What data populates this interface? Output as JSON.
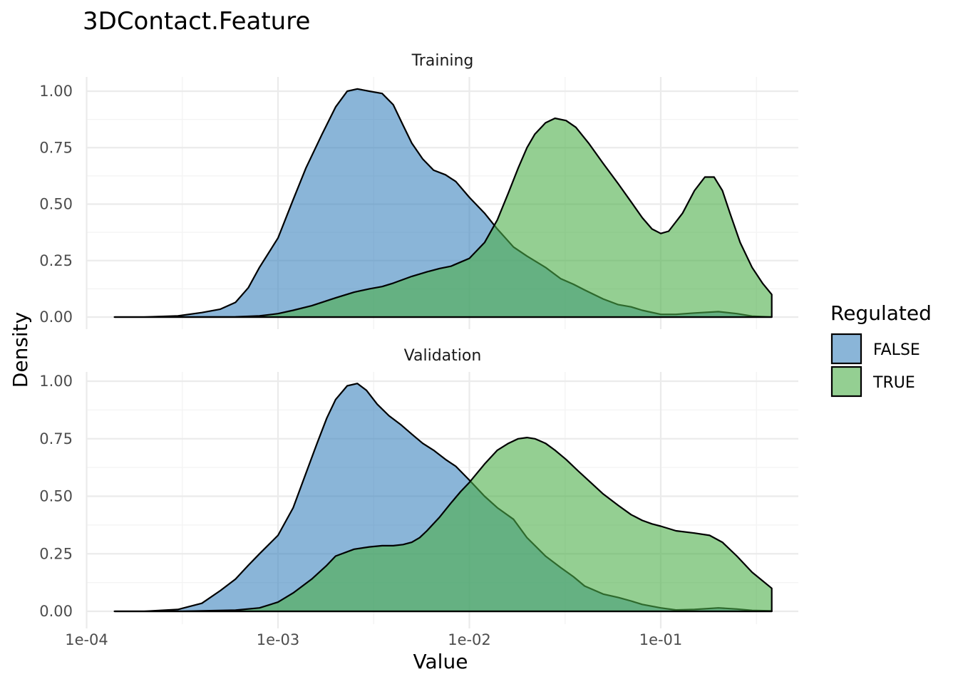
{
  "chart_data": {
    "type": "area",
    "title": "3DContact.Feature",
    "xlabel": "Value",
    "ylabel": "Density",
    "x_scale": "log10",
    "xlim": [
      0.0001,
      0.4
    ],
    "x_ticks": [
      {
        "value": 0.0001,
        "label": "1e-04"
      },
      {
        "value": 0.001,
        "label": "1e-03"
      },
      {
        "value": 0.01,
        "label": "1e-02"
      },
      {
        "value": 0.1,
        "label": "1e-01"
      }
    ],
    "ylim": [
      0,
      1.05
    ],
    "y_ticks": [
      {
        "value": 0,
        "label": "0.00"
      },
      {
        "value": 0.25,
        "label": "0.25"
      },
      {
        "value": 0.5,
        "label": "0.50"
      },
      {
        "value": 0.75,
        "label": "0.75"
      },
      {
        "value": 1,
        "label": "1.00"
      }
    ],
    "grid": true,
    "legend": {
      "title": "Regulated",
      "position": "right",
      "entries": [
        {
          "label": "FALSE",
          "color": "#3C84BE"
        },
        {
          "label": "TRUE",
          "color": "#4DAF4A"
        }
      ]
    },
    "panels": [
      {
        "name": "Training",
        "series": [
          {
            "name": "FALSE",
            "color": "#3C84BE",
            "x": [
              0.00014,
              0.0002,
              0.0003,
              0.0004,
              0.0005,
              0.0006,
              0.0007,
              0.0008,
              0.001,
              0.0012,
              0.0014,
              0.0017,
              0.002,
              0.0023,
              0.0026,
              0.003,
              0.0035,
              0.004,
              0.0045,
              0.005,
              0.0057,
              0.0065,
              0.0075,
              0.0085,
              0.01,
              0.012,
              0.014,
              0.017,
              0.02,
              0.025,
              0.03,
              0.035,
              0.04,
              0.05,
              0.06,
              0.07,
              0.08,
              0.1,
              0.12,
              0.15,
              0.2,
              0.25,
              0.3,
              0.38
            ],
            "y": [
              0.0,
              0.0,
              0.005,
              0.02,
              0.035,
              0.065,
              0.13,
              0.22,
              0.35,
              0.52,
              0.66,
              0.81,
              0.93,
              1.0,
              1.01,
              1.0,
              0.99,
              0.94,
              0.85,
              0.77,
              0.7,
              0.65,
              0.63,
              0.6,
              0.53,
              0.46,
              0.39,
              0.31,
              0.27,
              0.22,
              0.17,
              0.145,
              0.12,
              0.08,
              0.055,
              0.045,
              0.03,
              0.012,
              0.012,
              0.018,
              0.024,
              0.015,
              0.004,
              0.0
            ]
          },
          {
            "name": "TRUE",
            "color": "#4DAF4A",
            "x": [
              0.00014,
              0.0003,
              0.0006,
              0.0008,
              0.001,
              0.0012,
              0.0015,
              0.002,
              0.0025,
              0.003,
              0.0035,
              0.004,
              0.005,
              0.006,
              0.007,
              0.008,
              0.01,
              0.012,
              0.014,
              0.016,
              0.018,
              0.02,
              0.022,
              0.025,
              0.028,
              0.032,
              0.036,
              0.042,
              0.05,
              0.06,
              0.07,
              0.08,
              0.09,
              0.1,
              0.11,
              0.13,
              0.15,
              0.17,
              0.19,
              0.21,
              0.23,
              0.26,
              0.3,
              0.34,
              0.38
            ],
            "y": [
              0.0,
              0.0,
              0.001,
              0.005,
              0.015,
              0.03,
              0.05,
              0.085,
              0.11,
              0.125,
              0.135,
              0.15,
              0.18,
              0.2,
              0.215,
              0.225,
              0.26,
              0.33,
              0.43,
              0.55,
              0.66,
              0.75,
              0.81,
              0.86,
              0.88,
              0.87,
              0.84,
              0.77,
              0.68,
              0.59,
              0.51,
              0.44,
              0.39,
              0.37,
              0.38,
              0.46,
              0.56,
              0.62,
              0.62,
              0.56,
              0.46,
              0.33,
              0.22,
              0.15,
              0.1
            ]
          }
        ]
      },
      {
        "name": "Validation",
        "series": [
          {
            "name": "FALSE",
            "color": "#3C84BE",
            "x": [
              0.00014,
              0.0002,
              0.0003,
              0.0004,
              0.0005,
              0.0006,
              0.0007,
              0.0008,
              0.001,
              0.0012,
              0.0014,
              0.0016,
              0.0018,
              0.002,
              0.0023,
              0.0026,
              0.0029,
              0.0033,
              0.0038,
              0.0044,
              0.005,
              0.0057,
              0.0065,
              0.0075,
              0.0085,
              0.01,
              0.012,
              0.014,
              0.017,
              0.02,
              0.025,
              0.03,
              0.035,
              0.04,
              0.05,
              0.06,
              0.07,
              0.08,
              0.1,
              0.12,
              0.15,
              0.2,
              0.25,
              0.3,
              0.38
            ],
            "y": [
              0.0,
              0.0,
              0.008,
              0.035,
              0.09,
              0.14,
              0.2,
              0.25,
              0.33,
              0.45,
              0.6,
              0.73,
              0.84,
              0.92,
              0.98,
              0.99,
              0.96,
              0.9,
              0.85,
              0.81,
              0.77,
              0.73,
              0.7,
              0.66,
              0.63,
              0.57,
              0.5,
              0.45,
              0.4,
              0.32,
              0.24,
              0.19,
              0.15,
              0.11,
              0.075,
              0.06,
              0.045,
              0.03,
              0.015,
              0.006,
              0.008,
              0.015,
              0.01,
              0.004,
              0.002
            ]
          },
          {
            "name": "TRUE",
            "color": "#4DAF4A",
            "x": [
              0.00014,
              0.0003,
              0.0006,
              0.0008,
              0.001,
              0.0012,
              0.0015,
              0.0018,
              0.002,
              0.0025,
              0.003,
              0.0035,
              0.004,
              0.0045,
              0.005,
              0.0055,
              0.006,
              0.007,
              0.008,
              0.009,
              0.01,
              0.012,
              0.014,
              0.016,
              0.018,
              0.02,
              0.022,
              0.025,
              0.028,
              0.032,
              0.037,
              0.043,
              0.05,
              0.06,
              0.07,
              0.08,
              0.09,
              0.1,
              0.12,
              0.15,
              0.18,
              0.21,
              0.25,
              0.3,
              0.38
            ],
            "y": [
              0.0,
              0.0,
              0.005,
              0.015,
              0.04,
              0.08,
              0.14,
              0.2,
              0.24,
              0.27,
              0.28,
              0.285,
              0.285,
              0.29,
              0.3,
              0.32,
              0.35,
              0.41,
              0.47,
              0.52,
              0.56,
              0.64,
              0.7,
              0.73,
              0.75,
              0.755,
              0.75,
              0.73,
              0.7,
              0.66,
              0.61,
              0.56,
              0.51,
              0.46,
              0.42,
              0.395,
              0.38,
              0.37,
              0.35,
              0.34,
              0.33,
              0.3,
              0.24,
              0.17,
              0.1
            ]
          }
        ]
      }
    ]
  }
}
